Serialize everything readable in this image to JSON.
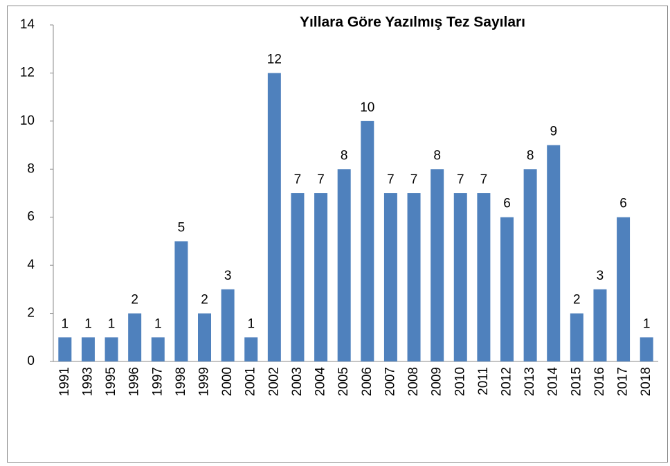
{
  "chart_data": {
    "type": "bar",
    "title": "Yıllara Göre Yazılmış Tez Sayıları",
    "categories": [
      "1991",
      "1993",
      "1995",
      "1996",
      "1997",
      "1998",
      "1999",
      "2000",
      "2001",
      "2002",
      "2003",
      "2004",
      "2005",
      "2006",
      "2007",
      "2008",
      "2009",
      "2010",
      "2011",
      "2012",
      "2013",
      "2014",
      "2015",
      "2016",
      "2017",
      "2018"
    ],
    "values": [
      1,
      1,
      1,
      2,
      1,
      5,
      2,
      3,
      1,
      12,
      7,
      7,
      8,
      10,
      7,
      7,
      8,
      7,
      7,
      6,
      8,
      9,
      2,
      3,
      6,
      1
    ],
    "color": "#4f81bd",
    "ylim": [
      0,
      14
    ],
    "yticks": [
      0,
      2,
      4,
      6,
      8,
      10,
      12,
      14
    ],
    "grid": false
  }
}
